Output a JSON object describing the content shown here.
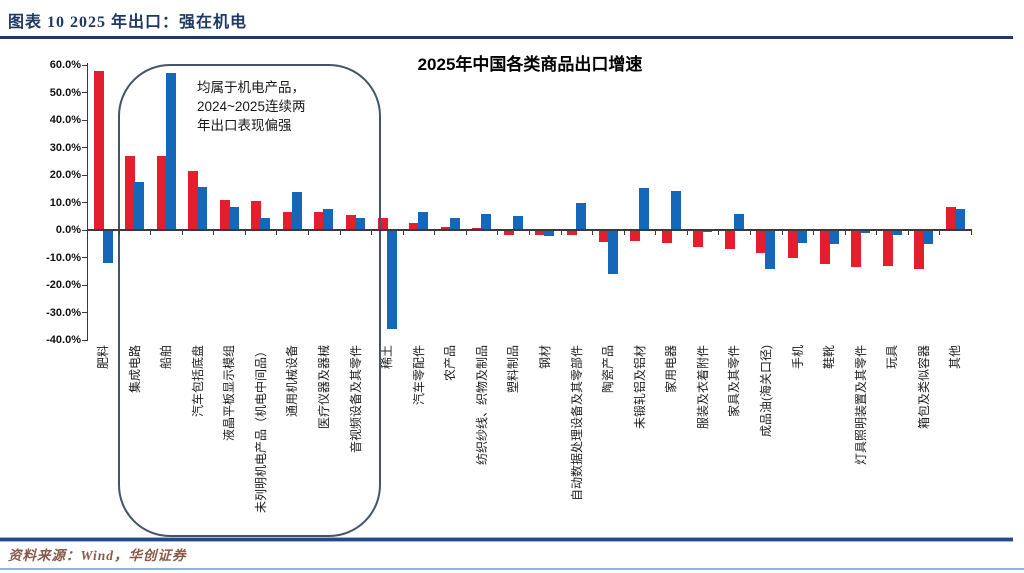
{
  "header": {
    "title": "图表 10  2025 年出口：强在机电"
  },
  "chart_data": {
    "type": "bar",
    "title": "2025年中国各类商品出口增速",
    "categories": [
      "肥料",
      "集成电路",
      "船舶",
      "汽车包括底盘",
      "液晶平板显示模组",
      "未列明机电产品（机电中间品）",
      "通用机械设备",
      "医疗仪器及器械",
      "音视频设备及其零件",
      "稀土",
      "汽车零配件",
      "农产品",
      "纺织纱线、织物及制品",
      "塑料制品",
      "钢材",
      "自动数据处理设备及其零部件",
      "陶瓷产品",
      "未锻轧铝及铝材",
      "家用电器",
      "服装及衣着附件",
      "家具及其零件",
      "成品油(海关口径)",
      "手机",
      "鞋靴",
      "灯具照明装置及其零件",
      "玩具",
      "箱包及类似容器",
      "其他"
    ],
    "series": [
      {
        "id": "red-series",
        "color": "#e31e2d",
        "values": [
          58,
          27,
          27,
          21.5,
          11,
          10.5,
          6.5,
          6.5,
          5.5,
          4.5,
          2.5,
          1.2,
          0.6,
          -1.7,
          -1.8,
          -1.8,
          -4.2,
          -4.0,
          -4.6,
          -6.0,
          -7.0,
          -8.5,
          -10.0,
          -12.4,
          -13.3,
          -13.2,
          -14.2,
          8.2
        ]
      },
      {
        "id": "blue-series",
        "color": "#1467b9",
        "values": [
          -12,
          17.5,
          57,
          15.5,
          8.5,
          4.5,
          14,
          7.5,
          4.5,
          -36,
          6.5,
          4.5,
          6.0,
          5.2,
          -2.2,
          9.7,
          -16,
          15.3,
          14.2,
          -0.8,
          5.8,
          -14,
          -4.7,
          -5.1,
          -1.0,
          -1.7,
          -5.1,
          7.6
        ]
      }
    ],
    "ylim": [
      -40,
      60
    ],
    "ytick_labels": [
      "60.0%",
      "50.0%",
      "40.0%",
      "30.0%",
      "20.0%",
      "10.0%",
      "0.0%",
      "-10.0%",
      "-20.0%",
      "-30.0%",
      "-40.0%"
    ],
    "grid": false,
    "legend": "none",
    "annotation": {
      "text": "均属于机电产品，\n2024~2025连续两\n年出口表现偏强",
      "highlight_category_start_index": 1,
      "highlight_category_end_index": 8
    }
  },
  "footer": {
    "source": "资料来源：Wind，华创证券"
  },
  "colors": {
    "header_text": "#1f3864",
    "header_rule": "#1f3864",
    "bar_red": "#e31e2d",
    "bar_blue": "#1467b9",
    "annotation_border": "#44546a",
    "chart_rule": "#26497f",
    "source_text": "#8a5a48",
    "page_rule": "#8fb1e3"
  }
}
